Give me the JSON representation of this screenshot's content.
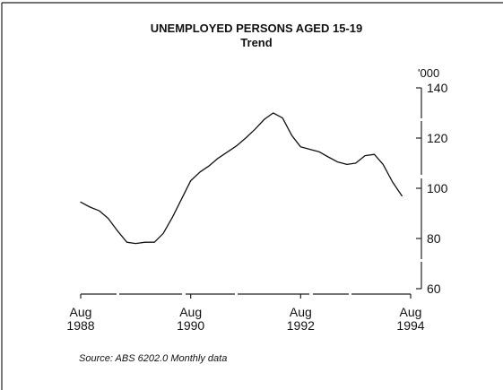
{
  "chart_data": {
    "type": "line",
    "title": "UNEMPLOYED PERSONS AGED 15-19",
    "subtitle": "Trend",
    "y_unit": "'000",
    "ylim": [
      60,
      140
    ],
    "yticks": [
      60,
      80,
      100,
      120,
      140
    ],
    "xlim": [
      1988.58,
      1994.58
    ],
    "xticks": [
      {
        "x": 1988.58,
        "label_month": "Aug",
        "label_year": "1988"
      },
      {
        "x": 1990.58,
        "label_month": "Aug",
        "label_year": "1990"
      },
      {
        "x": 1992.58,
        "label_month": "Aug",
        "label_year": "1992"
      },
      {
        "x": 1994.58,
        "label_month": "Aug",
        "label_year": "1994"
      }
    ],
    "grid": false,
    "legend": "none",
    "series": [
      {
        "values": [
          [
            1988.58,
            94.5
          ],
          [
            1988.75,
            92.5
          ],
          [
            1988.92,
            91.0
          ],
          [
            1989.08,
            88.0
          ],
          [
            1989.25,
            83.0
          ],
          [
            1989.42,
            78.5
          ],
          [
            1989.58,
            78.0
          ],
          [
            1989.75,
            78.5
          ],
          [
            1989.92,
            78.5
          ],
          [
            1990.08,
            82.0
          ],
          [
            1990.25,
            88.5
          ],
          [
            1990.42,
            96.0
          ],
          [
            1990.58,
            103.0
          ],
          [
            1990.75,
            106.5
          ],
          [
            1990.92,
            109.0
          ],
          [
            1991.08,
            112.0
          ],
          [
            1991.25,
            114.5
          ],
          [
            1991.42,
            117.0
          ],
          [
            1991.58,
            120.0
          ],
          [
            1991.75,
            123.5
          ],
          [
            1991.92,
            127.5
          ],
          [
            1992.08,
            130.0
          ],
          [
            1992.25,
            128.0
          ],
          [
            1992.42,
            121.0
          ],
          [
            1992.58,
            116.5
          ],
          [
            1992.75,
            115.5
          ],
          [
            1992.92,
            114.5
          ],
          [
            1993.08,
            112.5
          ],
          [
            1993.25,
            110.5
          ],
          [
            1993.42,
            109.5
          ],
          [
            1993.58,
            110.0
          ],
          [
            1993.75,
            113.0
          ],
          [
            1993.92,
            113.5
          ],
          [
            1994.08,
            109.5
          ],
          [
            1994.25,
            102.5
          ],
          [
            1994.42,
            97.0
          ]
        ]
      }
    ]
  },
  "source": "Source:  ABS 6202.0 Monthly data"
}
